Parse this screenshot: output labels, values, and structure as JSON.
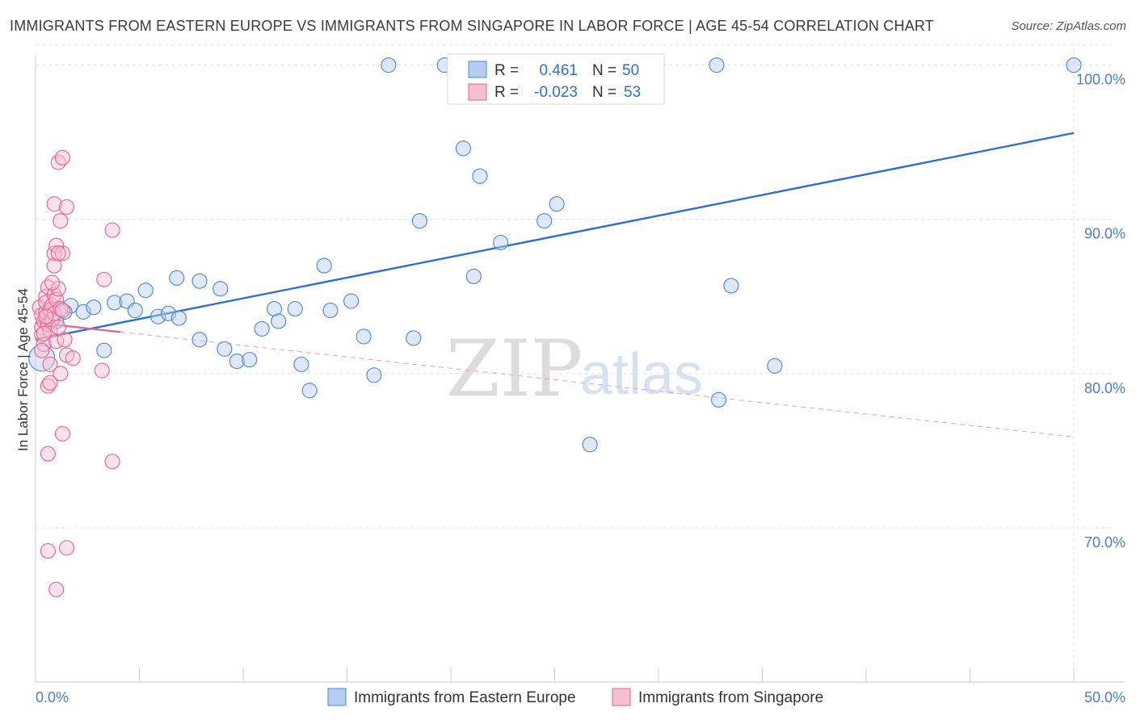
{
  "title": "IMMIGRANTS FROM EASTERN EUROPE VS IMMIGRANTS FROM SINGAPORE IN LABOR FORCE | AGE 45-54 CORRELATION CHART",
  "source": "Source: ZipAtlas.com",
  "watermark": {
    "zip": "ZIP",
    "atlas": "atlas"
  },
  "colors": {
    "blue": "#4a86d8",
    "blue_fill": "#b5cdf0",
    "pink": "#e8628f",
    "pink_fill": "#f6bfd0",
    "grid": "#dddddd",
    "axis_text": "#4a7fd0"
  },
  "legend_top": {
    "rows": [
      {
        "r_label": "R =",
        "r_value": "0.461",
        "n_label": "N =",
        "n_value": "50"
      },
      {
        "r_label": "R =",
        "r_value": "-0.023",
        "n_label": "N =",
        "n_value": "53"
      }
    ]
  },
  "legend_bottom": [
    "Immigrants from Eastern Europe",
    "Immigrants from Singapore"
  ],
  "chart_data": {
    "type": "scatter",
    "title": "IMMIGRANTS FROM EASTERN EUROPE VS IMMIGRANTS FROM SINGAPORE IN LABOR FORCE | AGE 45-54 CORRELATION CHART",
    "xlabel": "",
    "ylabel": "In Labor Force | Age 45-54",
    "xlim": [
      0,
      50
    ],
    "ylim": [
      60,
      101.5
    ],
    "x_tick_labels": [
      "0.0%",
      "50.0%"
    ],
    "y_ticks": [
      70,
      80,
      90,
      100
    ],
    "y_tick_labels": [
      "70.0%",
      "80.0%",
      "90.0%",
      "100.0%"
    ],
    "grid": true,
    "legend_placement": "top-center",
    "series": [
      {
        "name": "Immigrants from Eastern Europe",
        "color": "#4a86d8",
        "R": 0.461,
        "N": 50,
        "trend": {
          "x": [
            0,
            50
          ],
          "y": [
            82.2,
            95.6
          ]
        },
        "points": [
          [
            0.3,
            81.0
          ],
          [
            1.7,
            84.4
          ],
          [
            1.4,
            84.0
          ],
          [
            1.0,
            83.4
          ],
          [
            2.3,
            84.0
          ],
          [
            2.8,
            84.3
          ],
          [
            3.3,
            81.5
          ],
          [
            3.8,
            84.6
          ],
          [
            4.4,
            84.7
          ],
          [
            4.8,
            84.1
          ],
          [
            5.3,
            85.4
          ],
          [
            5.9,
            83.7
          ],
          [
            6.4,
            83.9
          ],
          [
            6.9,
            83.6
          ],
          [
            6.8,
            86.2
          ],
          [
            7.9,
            82.2
          ],
          [
            7.9,
            86.0
          ],
          [
            8.9,
            85.5
          ],
          [
            9.1,
            81.6
          ],
          [
            9.7,
            80.8
          ],
          [
            10.3,
            80.9
          ],
          [
            10.9,
            82.9
          ],
          [
            11.5,
            84.2
          ],
          [
            11.7,
            83.4
          ],
          [
            12.5,
            84.2
          ],
          [
            12.8,
            80.6
          ],
          [
            13.2,
            78.9
          ],
          [
            13.9,
            87.0
          ],
          [
            14.2,
            84.1
          ],
          [
            15.2,
            84.7
          ],
          [
            15.8,
            82.4
          ],
          [
            16.3,
            79.9
          ],
          [
            17.0,
            100.0
          ],
          [
            18.2,
            82.3
          ],
          [
            18.5,
            89.9
          ],
          [
            19.7,
            100.0
          ],
          [
            20.6,
            94.6
          ],
          [
            21.1,
            86.3
          ],
          [
            21.4,
            92.8
          ],
          [
            22.4,
            88.5
          ],
          [
            24.5,
            89.9
          ],
          [
            25.1,
            91.0
          ],
          [
            26.7,
            75.4
          ],
          [
            29.6,
            100.0
          ],
          [
            32.8,
            100.0
          ],
          [
            32.9,
            78.3
          ],
          [
            33.5,
            85.7
          ],
          [
            35.6,
            80.5
          ],
          [
            50.0,
            100.0
          ],
          [
            29.5,
            100.0
          ]
        ]
      },
      {
        "name": "Immigrants from Singapore",
        "color": "#e8628f",
        "R": -0.023,
        "N": 53,
        "trend": {
          "x": [
            0,
            50
          ],
          "y": [
            83.3,
            75.9
          ]
        },
        "trend_solid_end_x": 4.1,
        "points": [
          [
            0.2,
            84.3
          ],
          [
            0.3,
            83.8
          ],
          [
            0.3,
            83.0
          ],
          [
            0.3,
            82.5
          ],
          [
            0.4,
            81.9
          ],
          [
            0.4,
            83.4
          ],
          [
            0.5,
            84.0
          ],
          [
            0.5,
            85.0
          ],
          [
            0.5,
            84.6
          ],
          [
            0.6,
            83.2
          ],
          [
            0.6,
            85.6
          ],
          [
            0.7,
            84.1
          ],
          [
            0.7,
            82.8
          ],
          [
            0.8,
            83.5
          ],
          [
            0.8,
            84.4
          ],
          [
            0.9,
            85.1
          ],
          [
            0.9,
            83.9
          ],
          [
            1.0,
            84.8
          ],
          [
            1.0,
            82.1
          ],
          [
            1.1,
            85.5
          ],
          [
            1.1,
            83.0
          ],
          [
            1.2,
            84.2
          ],
          [
            0.6,
            74.8
          ],
          [
            0.6,
            68.5
          ],
          [
            0.6,
            79.2
          ],
          [
            0.7,
            79.4
          ],
          [
            0.7,
            80.6
          ],
          [
            0.9,
            87.8
          ],
          [
            0.9,
            87.0
          ],
          [
            1.0,
            88.3
          ],
          [
            0.9,
            91.0
          ],
          [
            1.1,
            93.7
          ],
          [
            1.3,
            94.0
          ],
          [
            1.2,
            89.9
          ],
          [
            1.3,
            87.8
          ],
          [
            1.5,
            90.8
          ],
          [
            1.4,
            82.2
          ],
          [
            1.5,
            81.2
          ],
          [
            1.2,
            80.0
          ],
          [
            1.3,
            76.1
          ],
          [
            1.5,
            68.7
          ],
          [
            1.0,
            66.0
          ],
          [
            1.8,
            81.0
          ],
          [
            3.2,
            80.2
          ],
          [
            3.3,
            86.1
          ],
          [
            3.7,
            89.3
          ],
          [
            3.7,
            74.3
          ],
          [
            1.1,
            87.8
          ],
          [
            0.4,
            82.6
          ],
          [
            0.5,
            83.7
          ],
          [
            0.8,
            85.9
          ],
          [
            1.3,
            84.1
          ],
          [
            0.3,
            81.5
          ]
        ]
      }
    ]
  }
}
